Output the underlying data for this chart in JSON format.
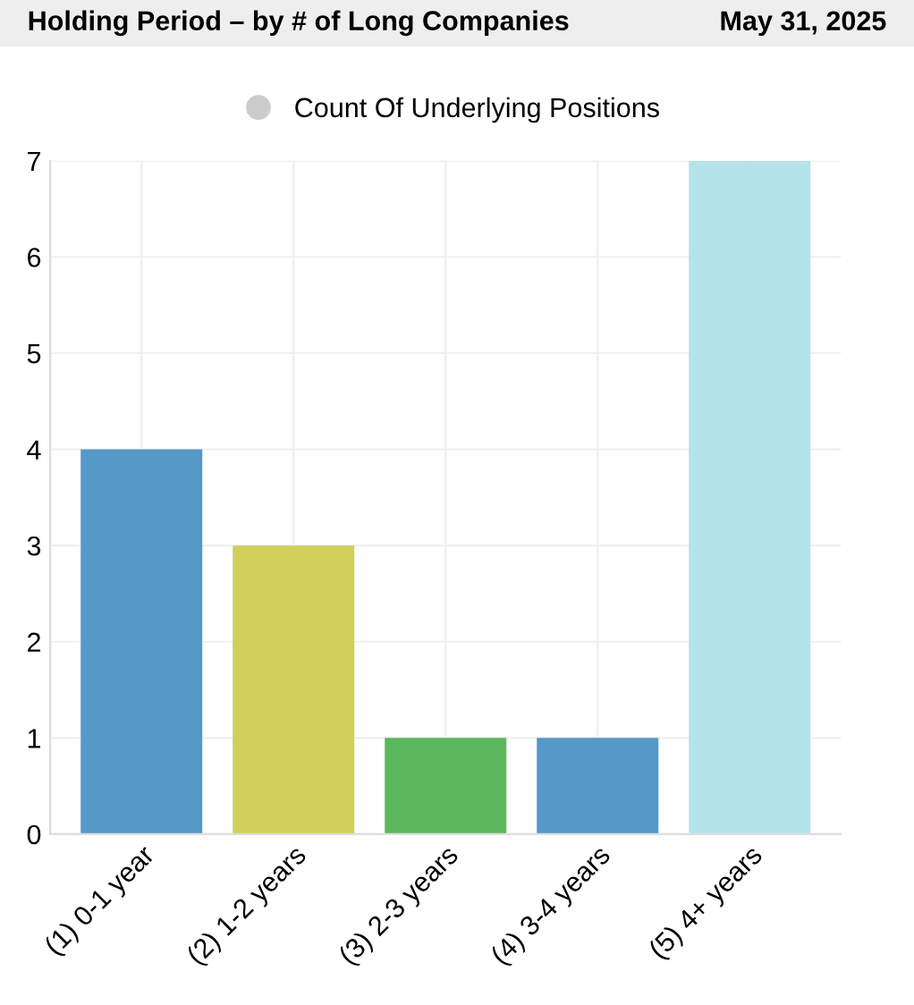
{
  "chart_data": {
    "type": "bar",
    "title": "Holding Period – by # of Long Companies",
    "subtitle": "May 31, 2025",
    "categories": [
      "(1) 0-1 year",
      "(2) 1-2 years",
      "(3) 2-3 years",
      "(4) 3-4 years",
      "(5) 4+ years"
    ],
    "series": [
      {
        "name": "Count Of Underlying Positions",
        "color": "#cccccc",
        "colors": [
          "#5499c7",
          "#cfcf5a",
          "#5cb85c",
          "#5499c7",
          "#b5e3ea"
        ],
        "values": [
          4,
          3,
          1,
          1,
          7
        ]
      }
    ],
    "ylim": [
      0,
      7
    ],
    "yticks": [
      0,
      1,
      2,
      3,
      4,
      5,
      6,
      7
    ],
    "grid": true,
    "legend": "top"
  }
}
